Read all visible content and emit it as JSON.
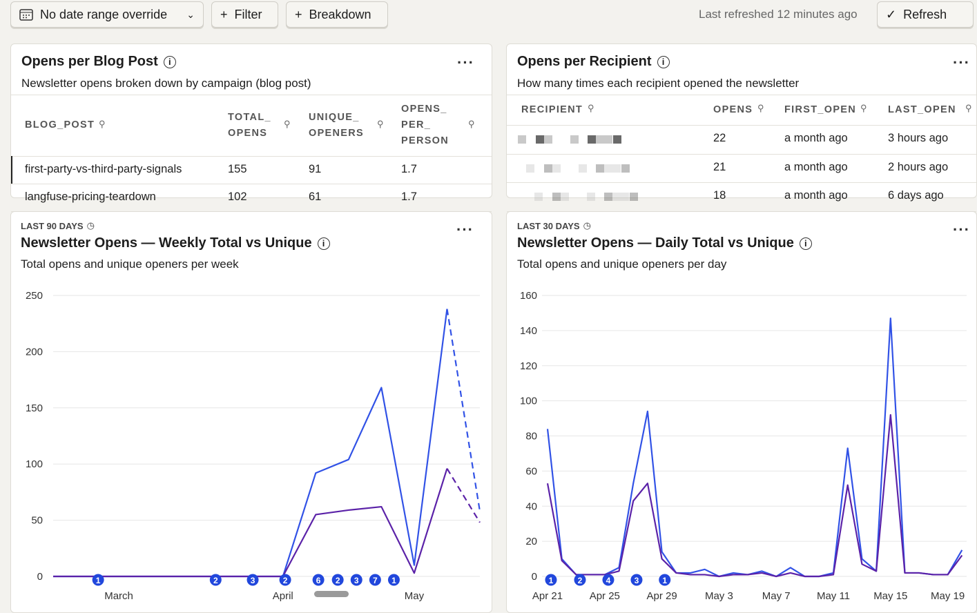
{
  "toolbar": {
    "date_range": "No date range override",
    "filter": "Filter",
    "breakdown": "Breakdown",
    "last_refreshed": "Last refreshed 12 minutes ago",
    "refresh": "Refresh"
  },
  "tables": [
    {
      "title": "Opens per Blog Post",
      "subtitle": "Newsletter opens broken down by campaign (blog post)",
      "columns": [
        "BLOG_POST",
        "TOTAL_\nOPENS",
        "UNIQUE_\nOPENERS",
        "OPENS_\nPER_\nPERSON"
      ],
      "rows": [
        [
          "first-party-vs-third-party-signals",
          155,
          91,
          1.7
        ],
        [
          "langfuse-pricing-teardown",
          102,
          61,
          1.7
        ]
      ]
    },
    {
      "title": "Opens per Recipient",
      "subtitle": "How many times each recipient opened the newsletter",
      "columns": [
        "RECIPIENT",
        "OPENS",
        "FIRST_OPEN",
        "LAST_OPEN"
      ],
      "rows": [
        [
          null,
          22,
          "a month ago",
          "3 hours ago"
        ],
        [
          null,
          21,
          "a month ago",
          "2 hours ago"
        ],
        [
          null,
          18,
          "a month ago",
          "6 days ago"
        ]
      ]
    }
  ],
  "chart_data": [
    {
      "type": "line",
      "label": "LAST 90 DAYS",
      "title": "Newsletter Opens — Weekly Total vs Unique",
      "subtitle": "Total opens and unique openers per week",
      "categories": [
        null,
        null,
        "March",
        null,
        null,
        null,
        null,
        "April",
        null,
        null,
        null,
        "May",
        null,
        null
      ],
      "series": [
        {
          "color": "#3152e6",
          "values": [
            0,
            0,
            0,
            0,
            0,
            0,
            0,
            0,
            92,
            104,
            168,
            10,
            238,
            58
          ]
        },
        {
          "color": "#5b22a8",
          "values": [
            0,
            0,
            0,
            0,
            0,
            0,
            0,
            0,
            55,
            59,
            62,
            3,
            96,
            48
          ]
        }
      ],
      "ylim": [
        0,
        250
      ],
      "yticks": [
        0,
        50,
        100,
        150,
        200,
        250
      ],
      "grid": true,
      "dashed_last_segment": true,
      "annotations": [
        {
          "x": 1.37,
          "count": 1
        },
        {
          "x": 4.95,
          "count": 2
        },
        {
          "x": 6.08,
          "count": 3
        },
        {
          "x": 7.07,
          "count": 2
        },
        {
          "x": 8.08,
          "count": 6
        },
        {
          "x": 8.67,
          "count": 2
        },
        {
          "x": 9.24,
          "count": 3
        },
        {
          "x": 9.81,
          "count": 7
        },
        {
          "x": 10.38,
          "count": 1
        }
      ]
    },
    {
      "type": "line",
      "label": "LAST 30 DAYS",
      "title": "Newsletter Opens — Daily Total vs Unique",
      "subtitle": "Total opens and unique openers per day",
      "categories": [
        "Apr 21",
        null,
        null,
        null,
        "Apr 25",
        null,
        null,
        null,
        "Apr 29",
        null,
        null,
        null,
        "May 3",
        null,
        null,
        null,
        "May 7",
        null,
        null,
        null,
        "May 11",
        null,
        null,
        null,
        "May 15",
        null,
        null,
        null,
        "May 19",
        null
      ],
      "series": [
        {
          "color": "#3152e6",
          "values": [
            84,
            10,
            1,
            1,
            1,
            5,
            53,
            94,
            14,
            2,
            2,
            4,
            0,
            2,
            1,
            3,
            0,
            5,
            0,
            0,
            2,
            73,
            10,
            3,
            147,
            2,
            2,
            1,
            1,
            15
          ]
        },
        {
          "color": "#5b22a8",
          "values": [
            53,
            9,
            1,
            1,
            1,
            3,
            43,
            53,
            10,
            2,
            1,
            1,
            0,
            1,
            1,
            2,
            0,
            2,
            0,
            0,
            1,
            52,
            7,
            3,
            92,
            2,
            2,
            1,
            1,
            12
          ]
        }
      ],
      "ylim": [
        0,
        160
      ],
      "yticks": [
        0,
        20,
        40,
        60,
        80,
        100,
        120,
        140,
        160
      ],
      "grid": true,
      "dashed_last_segment": false,
      "annotations": [
        {
          "x": 0.24,
          "count": 1
        },
        {
          "x": 2.27,
          "count": 2
        },
        {
          "x": 4.25,
          "count": 4
        },
        {
          "x": 6.23,
          "count": 3
        },
        {
          "x": 8.2,
          "count": 1
        }
      ]
    }
  ]
}
